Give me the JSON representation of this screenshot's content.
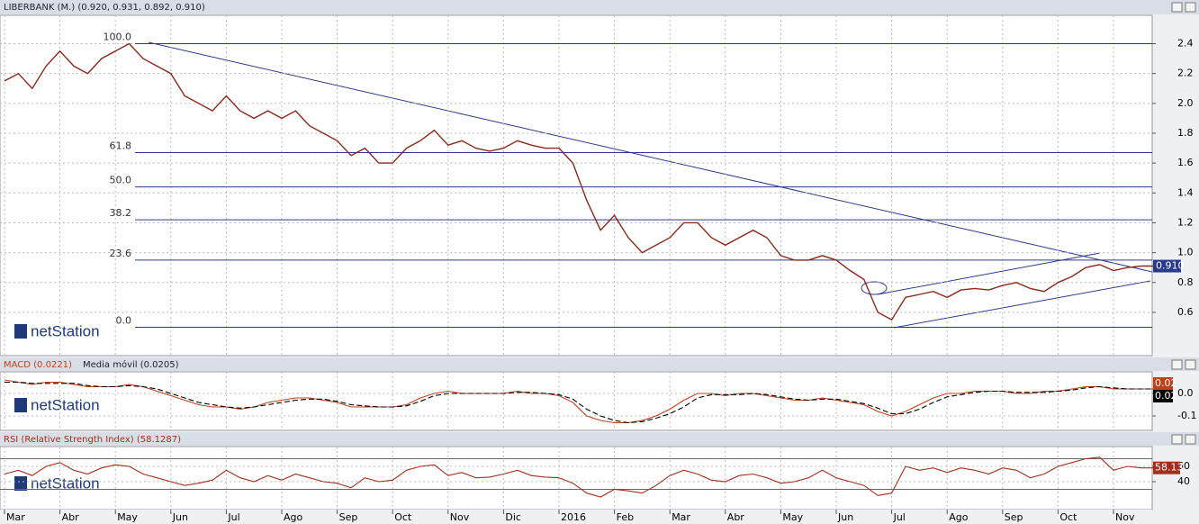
{
  "brand": "netStation",
  "chart_data": [
    {
      "type": "line",
      "title": "LIBERBANK (M.) (0.920, 0.931, 0.892, 0.910)",
      "last_label": "0.910",
      "categories": [
        "Mar",
        null,
        null,
        null,
        "Abr",
        null,
        null,
        null,
        "May",
        null,
        null,
        null,
        "Jun",
        null,
        null,
        null,
        "Jul",
        null,
        null,
        null,
        "Ago",
        null,
        null,
        null,
        "Sep",
        null,
        null,
        null,
        "Oct",
        null,
        null,
        null,
        "Nov",
        null,
        null,
        null,
        "Dic",
        null,
        null,
        null,
        "2016",
        null,
        null,
        null,
        "Feb",
        null,
        null,
        null,
        "Mar",
        null,
        null,
        null,
        "Abr",
        null,
        null,
        null,
        "May",
        null,
        null,
        null,
        "Jun",
        null,
        null,
        null,
        "Jul",
        null,
        null,
        null,
        "Ago",
        null,
        null,
        null,
        "Sep",
        null,
        null,
        null,
        "Oct",
        null,
        null,
        null,
        "Nov",
        null,
        null,
        null
      ],
      "series": [
        {
          "name": "LIBERBANK",
          "color": "#8b2a1a",
          "values": [
            2.15,
            2.2,
            2.1,
            2.25,
            2.35,
            2.25,
            2.2,
            2.3,
            2.35,
            2.4,
            2.3,
            2.25,
            2.2,
            2.05,
            2.0,
            1.95,
            2.05,
            1.95,
            1.9,
            1.95,
            1.9,
            1.95,
            1.85,
            1.8,
            1.75,
            1.65,
            1.7,
            1.6,
            1.6,
            1.7,
            1.75,
            1.82,
            1.72,
            1.75,
            1.7,
            1.68,
            1.7,
            1.75,
            1.72,
            1.7,
            1.7,
            1.6,
            1.35,
            1.15,
            1.25,
            1.1,
            1.0,
            1.05,
            1.1,
            1.2,
            1.2,
            1.1,
            1.05,
            1.1,
            1.15,
            1.1,
            0.98,
            0.95,
            0.95,
            0.98,
            0.95,
            0.88,
            0.82,
            0.6,
            0.55,
            0.7,
            0.72,
            0.74,
            0.7,
            0.75,
            0.76,
            0.75,
            0.78,
            0.8,
            0.76,
            0.74,
            0.8,
            0.84,
            0.9,
            0.92,
            0.88,
            0.9,
            0.91,
            0.91
          ]
        }
      ],
      "ylim": [
        0.31,
        2.59
      ],
      "yticks": [
        0.6,
        0.8,
        {
          "value": 1,
          "label": "1.0"
        },
        1.2,
        1.4,
        1.6,
        1.8,
        {
          "value": 2,
          "label": "2.0"
        },
        2.2,
        2.4
      ],
      "fib_levels": [
        {
          "value": 2.4,
          "label": "100.0"
        },
        {
          "value": 1.67,
          "label": "61.8"
        },
        {
          "value": 1.44,
          "label": "50.0"
        },
        {
          "value": 1.22,
          "label": "38.2"
        },
        {
          "value": 0.95,
          "label": "23.6"
        },
        {
          "value": 0.5,
          "label": "0.0"
        }
      ],
      "grid": true
    },
    {
      "type": "line",
      "value_boxes": [
        "0.02",
        "0.02"
      ],
      "series": [
        {
          "name": "MACD (0.0221)",
          "color": "#c0401a",
          "values": [
            0.06,
            0.05,
            0.04,
            0.05,
            0.05,
            0.04,
            0.03,
            0.03,
            0.03,
            0.04,
            0.03,
            0.01,
            -0.01,
            -0.03,
            -0.05,
            -0.06,
            -0.06,
            -0.07,
            -0.06,
            -0.04,
            -0.03,
            -0.02,
            -0.02,
            -0.03,
            -0.04,
            -0.06,
            -0.06,
            -0.06,
            -0.06,
            -0.05,
            -0.02,
            0.0,
            0.01,
            0.0,
            0.0,
            0.0,
            0.0,
            0.01,
            0.0,
            0.0,
            -0.01,
            -0.04,
            -0.1,
            -0.12,
            -0.13,
            -0.13,
            -0.12,
            -0.1,
            -0.07,
            -0.03,
            0.0,
            0.0,
            -0.01,
            0.0,
            0.0,
            -0.01,
            -0.02,
            -0.03,
            -0.03,
            -0.02,
            -0.03,
            -0.04,
            -0.05,
            -0.08,
            -0.1,
            -0.08,
            -0.05,
            -0.02,
            0.0,
            0.0,
            0.01,
            0.01,
            0.01,
            0.0,
            0.0,
            0.01,
            0.01,
            0.02,
            0.03,
            0.03,
            0.02,
            0.02,
            0.02,
            0.02
          ]
        },
        {
          "name": "Media móvil (0.0205)",
          "color": "#000000",
          "values": [
            0.05,
            0.05,
            0.045,
            0.045,
            0.045,
            0.045,
            0.035,
            0.03,
            0.03,
            0.035,
            0.03,
            0.02,
            0.0,
            -0.02,
            -0.04,
            -0.05,
            -0.06,
            -0.065,
            -0.06,
            -0.05,
            -0.04,
            -0.03,
            -0.025,
            -0.025,
            -0.035,
            -0.05,
            -0.055,
            -0.06,
            -0.06,
            -0.055,
            -0.035,
            -0.01,
            0.0,
            0.0,
            0.0,
            0.0,
            0.0,
            0.005,
            0.005,
            0.0,
            -0.005,
            -0.025,
            -0.07,
            -0.1,
            -0.12,
            -0.13,
            -0.125,
            -0.11,
            -0.09,
            -0.06,
            -0.02,
            -0.005,
            -0.005,
            -0.005,
            0.0,
            -0.005,
            -0.015,
            -0.025,
            -0.03,
            -0.025,
            -0.025,
            -0.035,
            -0.045,
            -0.065,
            -0.09,
            -0.09,
            -0.07,
            -0.04,
            -0.015,
            -0.005,
            0.005,
            0.01,
            0.01,
            0.005,
            0.005,
            0.005,
            0.01,
            0.015,
            0.025,
            0.03,
            0.025,
            0.02,
            0.02,
            0.02
          ]
        }
      ],
      "ylim": [
        -0.164,
        0.096
      ],
      "yticks": [
        {
          "value": 0,
          "label": "0.0"
        },
        -0.1
      ],
      "grid": true
    },
    {
      "type": "line",
      "value_boxes": [
        "58.13"
      ],
      "series": [
        {
          "name": "RSI (Relative Strength Index) (58.1287)",
          "color": "#a0301a",
          "values": [
            50,
            55,
            48,
            60,
            65,
            55,
            50,
            58,
            62,
            60,
            50,
            45,
            40,
            35,
            38,
            42,
            55,
            45,
            40,
            48,
            42,
            50,
            45,
            40,
            38,
            32,
            45,
            40,
            42,
            55,
            60,
            62,
            48,
            52,
            45,
            46,
            50,
            55,
            48,
            46,
            45,
            38,
            25,
            20,
            30,
            28,
            25,
            35,
            48,
            55,
            50,
            42,
            40,
            48,
            50,
            45,
            38,
            40,
            45,
            55,
            45,
            40,
            35,
            22,
            25,
            60,
            55,
            58,
            52,
            58,
            55,
            50,
            58,
            55,
            45,
            50,
            60,
            65,
            70,
            72,
            55,
            60,
            58,
            58
          ]
        }
      ],
      "ylim": [
        3.5,
        85.9
      ],
      "yticks": [
        60,
        40
      ],
      "levels": [
        70,
        30
      ],
      "grid": true
    }
  ]
}
